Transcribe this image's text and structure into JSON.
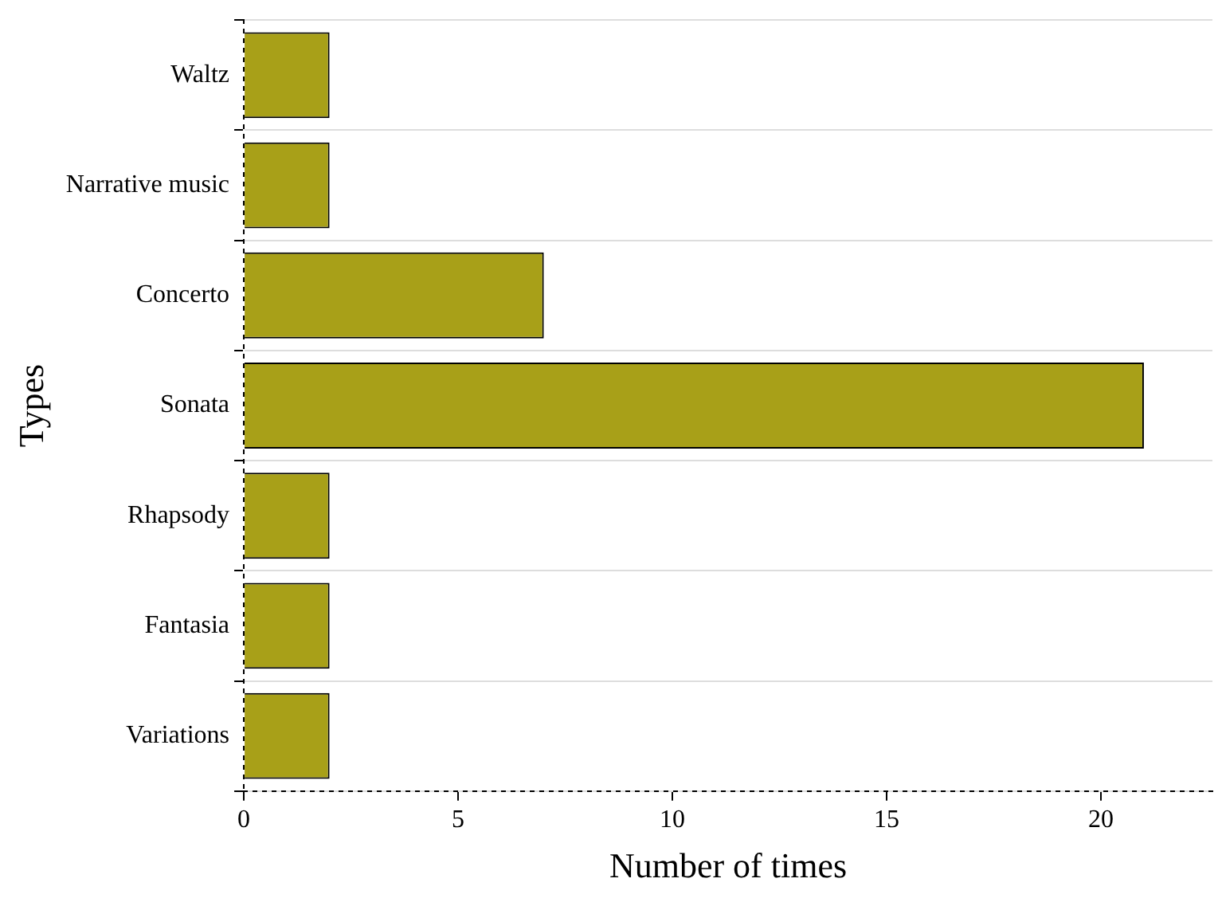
{
  "chart_data": {
    "type": "bar",
    "orientation": "horizontal",
    "xlabel": "Number of times",
    "ylabel": "Types",
    "categories": [
      "Waltz",
      "Narrative music",
      "Concerto",
      "Sonata",
      "Rhapsody",
      "Fantasia",
      "Variations"
    ],
    "values": [
      2,
      2,
      7,
      21,
      2,
      2,
      2
    ],
    "color": "#a8a018",
    "xlim": [
      0,
      22.6
    ],
    "xticks": [
      0,
      5,
      10,
      15,
      20
    ],
    "grid": "y",
    "legend": false
  }
}
